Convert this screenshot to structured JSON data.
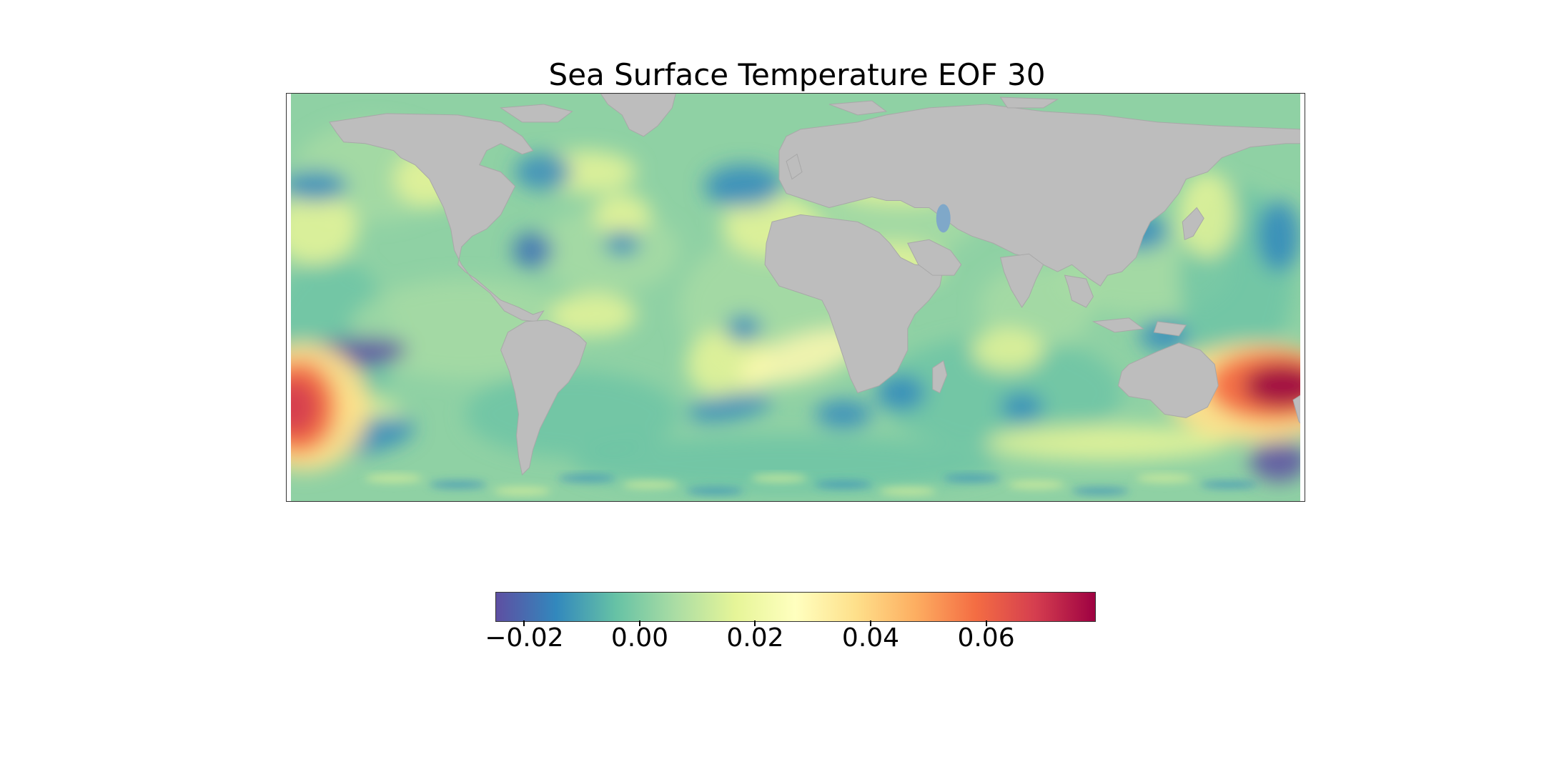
{
  "title": "Sea Surface Temperature EOF 30",
  "colormap": {
    "name": "Spectral_r",
    "min": -0.025,
    "max": 0.079,
    "stops": [
      "#5e4fa2",
      "#3288bd",
      "#66c2a5",
      "#abdda4",
      "#e6f598",
      "#ffffbf",
      "#fee08b",
      "#fdae61",
      "#f46d43",
      "#d53e4f",
      "#9e0142"
    ]
  },
  "colorbar": {
    "ticks": [
      {
        "value": -0.02,
        "label": "−0.02"
      },
      {
        "value": 0.0,
        "label": "0.00"
      },
      {
        "value": 0.02,
        "label": "0.02"
      },
      {
        "value": 0.04,
        "label": "0.04"
      },
      {
        "value": 0.06,
        "label": "0.06"
      }
    ]
  },
  "land_color": "#bdbdbd",
  "projection": "Plate Carree, longitude 0 to 360, latitude -78 to 90"
}
